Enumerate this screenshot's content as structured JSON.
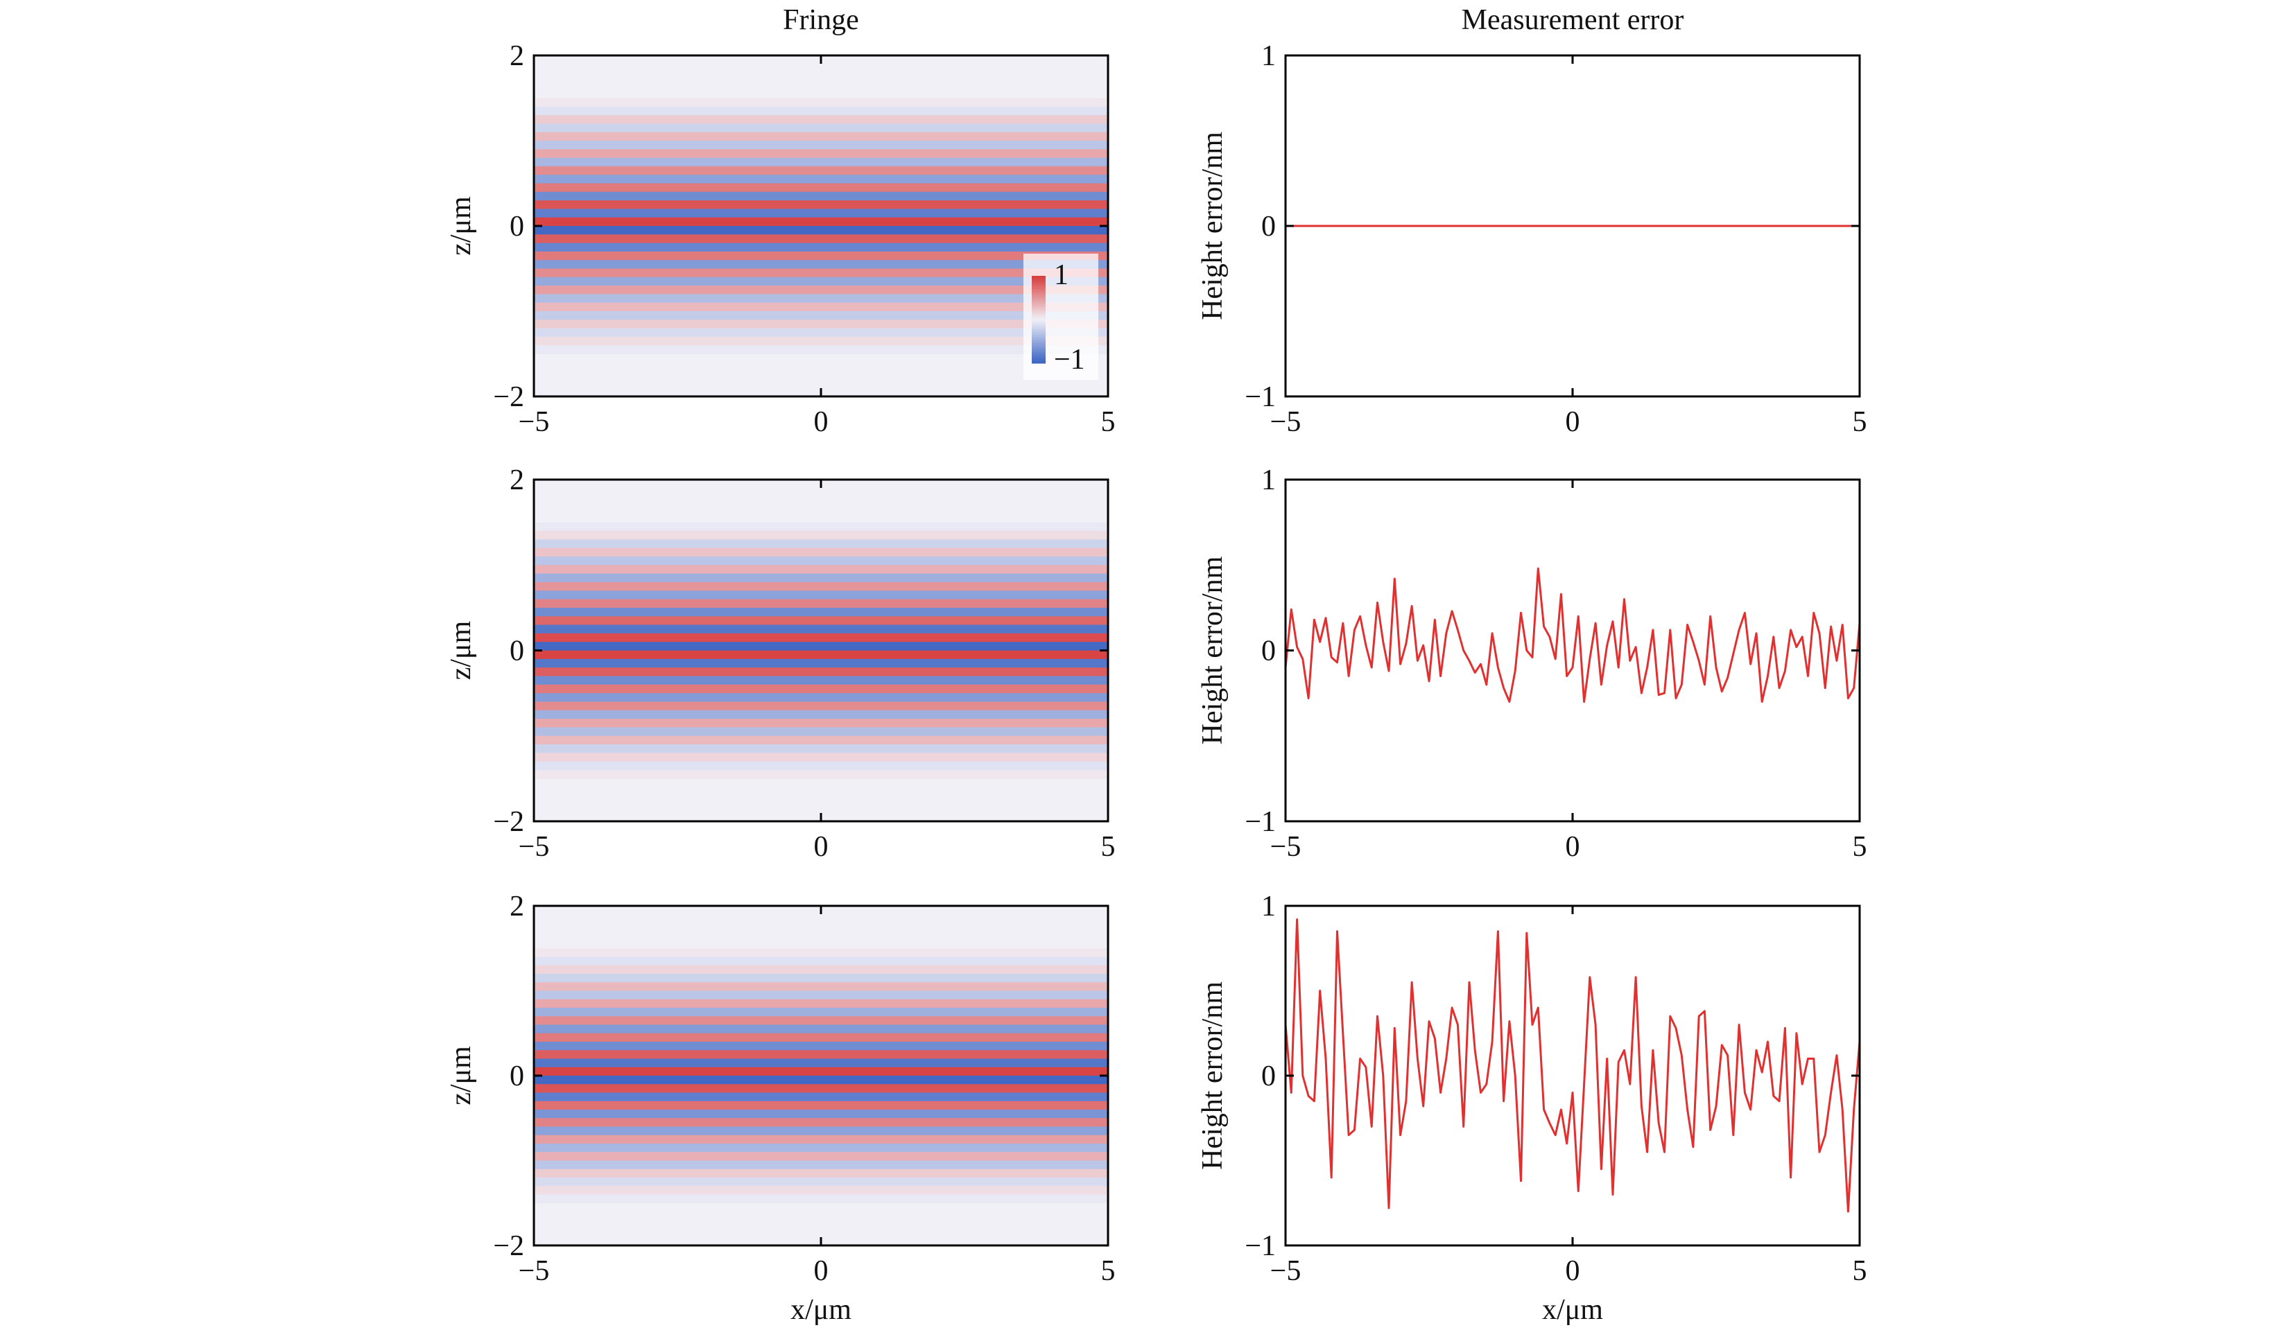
{
  "figure": {
    "column_titles": {
      "left": "Fringe",
      "right": "Measurement error"
    }
  },
  "colors": {
    "positive": "#d73a3a",
    "neutral": "#f1f0f7",
    "negative": "#3a62c2",
    "error_line": "#e03030"
  },
  "chart_data": [
    {
      "type": "heatmap",
      "row": 1,
      "title": "Fringe",
      "xlabel": "",
      "ylabel": "z/μm",
      "xlim": [
        -5,
        5
      ],
      "ylim": [
        -2,
        2
      ],
      "xticks": [
        -5,
        0,
        5
      ],
      "yticks": [
        -2,
        0,
        2
      ],
      "z_centers": [
        1.45,
        1.35,
        1.25,
        1.15,
        1.05,
        0.95,
        0.85,
        0.75,
        0.65,
        0.55,
        0.45,
        0.35,
        0.25,
        0.15,
        0.05,
        -0.05,
        -0.15,
        -0.25,
        -0.35,
        -0.45,
        -0.55,
        -0.65,
        -0.75,
        -0.85,
        -0.95,
        -1.05,
        -1.15,
        -1.25,
        -1.35,
        -1.45
      ],
      "intensity": [
        0.05,
        -0.1,
        0.2,
        -0.2,
        0.3,
        -0.3,
        0.4,
        -0.4,
        0.55,
        -0.55,
        0.65,
        -0.7,
        0.85,
        -0.8,
        0.95,
        -0.95,
        0.8,
        -0.75,
        0.65,
        -0.6,
        0.55,
        -0.5,
        0.45,
        -0.35,
        0.3,
        -0.25,
        0.2,
        -0.15,
        0.1,
        -0.05
      ],
      "colorbar": {
        "max_label": "1",
        "min_label": "−1",
        "range": [
          -1,
          1
        ]
      }
    },
    {
      "type": "heatmap",
      "row": 2,
      "xlabel": "",
      "ylabel": "z/μm",
      "xlim": [
        -5,
        5
      ],
      "ylim": [
        -2,
        2
      ],
      "xticks": [
        -5,
        0,
        5
      ],
      "yticks": [
        -2,
        0,
        2
      ],
      "z_centers": [
        1.45,
        1.35,
        1.25,
        1.15,
        1.05,
        0.95,
        0.85,
        0.75,
        0.65,
        0.55,
        0.45,
        0.35,
        0.25,
        0.15,
        0.05,
        -0.05,
        -0.15,
        -0.25,
        -0.35,
        -0.45,
        -0.55,
        -0.65,
        -0.75,
        -0.85,
        -0.95,
        -1.05,
        -1.15,
        -1.25,
        -1.35,
        -1.45
      ],
      "intensity": [
        -0.05,
        0.1,
        -0.2,
        0.25,
        -0.3,
        0.35,
        -0.45,
        0.5,
        -0.55,
        0.6,
        -0.7,
        0.75,
        -0.85,
        0.9,
        -0.95,
        0.95,
        -0.85,
        0.8,
        -0.7,
        0.65,
        -0.6,
        0.55,
        -0.45,
        0.4,
        -0.35,
        0.3,
        -0.2,
        0.15,
        -0.1,
        0.05
      ]
    },
    {
      "type": "heatmap",
      "row": 3,
      "xlabel": "x/μm",
      "ylabel": "z/μm",
      "xlim": [
        -5,
        5
      ],
      "ylim": [
        -2,
        2
      ],
      "xticks": [
        -5,
        0,
        5
      ],
      "yticks": [
        -2,
        0,
        2
      ],
      "z_centers": [
        1.45,
        1.35,
        1.25,
        1.15,
        1.05,
        0.95,
        0.85,
        0.75,
        0.65,
        0.55,
        0.45,
        0.35,
        0.25,
        0.15,
        0.05,
        -0.05,
        -0.15,
        -0.25,
        -0.35,
        -0.45,
        -0.55,
        -0.65,
        -0.75,
        -0.85,
        -0.95,
        -1.05,
        -1.15,
        -1.25,
        -1.35,
        -1.45
      ],
      "intensity": [
        0.05,
        -0.1,
        0.15,
        -0.2,
        0.3,
        -0.3,
        0.4,
        -0.45,
        0.55,
        -0.6,
        0.65,
        -0.7,
        0.8,
        -0.85,
        0.95,
        -0.95,
        0.85,
        -0.8,
        0.7,
        -0.65,
        0.6,
        -0.55,
        0.45,
        -0.4,
        0.35,
        -0.3,
        0.2,
        -0.15,
        0.1,
        -0.05
      ]
    },
    {
      "type": "line",
      "row": 1,
      "title": "Measurement error",
      "xlabel": "",
      "ylabel": "Height error/nm",
      "xlim": [
        -5,
        5
      ],
      "ylim": [
        -1,
        1
      ],
      "xticks": [
        -5,
        0,
        5
      ],
      "yticks": [
        -1,
        0,
        1
      ],
      "x": [
        -5,
        5
      ],
      "y": [
        0,
        0
      ]
    },
    {
      "type": "line",
      "row": 2,
      "xlabel": "",
      "ylabel": "Height error/nm",
      "xlim": [
        -5,
        5
      ],
      "ylim": [
        -1,
        1
      ],
      "xticks": [
        -5,
        0,
        5
      ],
      "yticks": [
        -1,
        0,
        1
      ],
      "x": [
        -5.0,
        -4.9,
        -4.8,
        -4.7,
        -4.6,
        -4.5,
        -4.4,
        -4.3,
        -4.2,
        -4.1,
        -4.0,
        -3.9,
        -3.8,
        -3.7,
        -3.6,
        -3.5,
        -3.4,
        -3.3,
        -3.2,
        -3.1,
        -3.0,
        -2.9,
        -2.8,
        -2.7,
        -2.6,
        -2.5,
        -2.4,
        -2.3,
        -2.2,
        -2.1,
        -2.0,
        -1.9,
        -1.8,
        -1.7,
        -1.6,
        -1.5,
        -1.4,
        -1.3,
        -1.2,
        -1.1,
        -1.0,
        -0.9,
        -0.8,
        -0.7,
        -0.6,
        -0.5,
        -0.4,
        -0.3,
        -0.2,
        -0.1,
        0.0,
        0.1,
        0.2,
        0.3,
        0.4,
        0.5,
        0.6,
        0.7,
        0.8,
        0.9,
        1.0,
        1.1,
        1.2,
        1.3,
        1.4,
        1.5,
        1.6,
        1.7,
        1.8,
        1.9,
        2.0,
        2.1,
        2.2,
        2.3,
        2.4,
        2.5,
        2.6,
        2.7,
        2.8,
        2.9,
        3.0,
        3.1,
        3.2,
        3.3,
        3.4,
        3.5,
        3.6,
        3.7,
        3.8,
        3.9,
        4.0,
        4.1,
        4.2,
        4.3,
        4.4,
        4.5,
        4.6,
        4.7,
        4.8,
        4.9,
        5.0
      ],
      "y": [
        -0.1,
        0.24,
        0.02,
        -0.05,
        -0.28,
        0.18,
        0.05,
        0.19,
        -0.04,
        -0.07,
        0.16,
        -0.15,
        0.12,
        0.2,
        0.03,
        -0.1,
        0.28,
        0.05,
        -0.12,
        0.42,
        -0.08,
        0.04,
        0.26,
        -0.06,
        0.03,
        -0.18,
        0.18,
        -0.15,
        0.1,
        0.23,
        0.12,
        0.0,
        -0.06,
        -0.13,
        -0.08,
        -0.2,
        0.1,
        -0.1,
        -0.22,
        -0.3,
        -0.12,
        0.22,
        0.0,
        -0.04,
        0.48,
        0.14,
        0.08,
        -0.05,
        0.33,
        -0.15,
        -0.1,
        0.2,
        -0.3,
        -0.05,
        0.16,
        -0.2,
        0.03,
        0.17,
        -0.1,
        0.3,
        -0.06,
        0.02,
        -0.25,
        -0.1,
        0.12,
        -0.26,
        -0.25,
        0.12,
        -0.28,
        -0.2,
        0.15,
        0.05,
        -0.06,
        -0.2,
        0.2,
        -0.1,
        -0.24,
        -0.16,
        -0.02,
        0.12,
        0.22,
        -0.08,
        0.1,
        -0.3,
        -0.15,
        0.08,
        -0.22,
        -0.12,
        0.12,
        0.02,
        0.08,
        -0.15,
        0.22,
        0.1,
        -0.22,
        0.14,
        -0.06,
        0.15,
        -0.28,
        -0.22,
        0.16
      ]
    },
    {
      "type": "line",
      "row": 3,
      "xlabel": "x/μm",
      "ylabel": "Height error/nm",
      "xlim": [
        -5,
        5
      ],
      "ylim": [
        -1,
        1
      ],
      "xticks": [
        -5,
        0,
        5
      ],
      "yticks": [
        -1,
        0,
        1
      ],
      "x": [
        -5.0,
        -4.9,
        -4.8,
        -4.7,
        -4.6,
        -4.5,
        -4.4,
        -4.3,
        -4.2,
        -4.1,
        -4.0,
        -3.9,
        -3.8,
        -3.7,
        -3.6,
        -3.5,
        -3.4,
        -3.3,
        -3.2,
        -3.1,
        -3.0,
        -2.9,
        -2.8,
        -2.7,
        -2.6,
        -2.5,
        -2.4,
        -2.3,
        -2.2,
        -2.1,
        -2.0,
        -1.9,
        -1.8,
        -1.7,
        -1.6,
        -1.5,
        -1.4,
        -1.3,
        -1.2,
        -1.1,
        -1.0,
        -0.9,
        -0.8,
        -0.7,
        -0.6,
        -0.5,
        -0.4,
        -0.3,
        -0.2,
        -0.1,
        0.0,
        0.1,
        0.2,
        0.3,
        0.4,
        0.5,
        0.6,
        0.7,
        0.8,
        0.9,
        1.0,
        1.1,
        1.2,
        1.3,
        1.4,
        1.5,
        1.6,
        1.7,
        1.8,
        1.9,
        2.0,
        2.1,
        2.2,
        2.3,
        2.4,
        2.5,
        2.6,
        2.7,
        2.8,
        2.9,
        3.0,
        3.1,
        3.2,
        3.3,
        3.4,
        3.5,
        3.6,
        3.7,
        3.8,
        3.9,
        4.0,
        4.1,
        4.2,
        4.3,
        4.4,
        4.5,
        4.6,
        4.7,
        4.8,
        4.9,
        5.0
      ],
      "y": [
        0.3,
        -0.1,
        0.92,
        0.0,
        -0.12,
        -0.15,
        0.5,
        0.1,
        -0.6,
        0.85,
        0.25,
        -0.35,
        -0.32,
        0.1,
        0.05,
        -0.3,
        0.35,
        0.0,
        -0.78,
        0.28,
        -0.35,
        -0.15,
        0.55,
        0.1,
        -0.18,
        0.32,
        0.22,
        -0.1,
        0.1,
        0.4,
        0.3,
        -0.3,
        0.55,
        0.15,
        -0.1,
        -0.05,
        0.2,
        0.85,
        -0.15,
        0.32,
        0.0,
        -0.62,
        0.84,
        0.3,
        0.4,
        -0.2,
        -0.28,
        -0.35,
        -0.2,
        -0.4,
        -0.1,
        -0.68,
        -0.05,
        0.58,
        0.3,
        -0.55,
        0.1,
        -0.7,
        0.08,
        0.15,
        -0.05,
        0.58,
        -0.18,
        -0.45,
        0.15,
        -0.28,
        -0.45,
        0.35,
        0.28,
        0.12,
        -0.2,
        -0.42,
        0.35,
        0.38,
        -0.32,
        -0.18,
        0.18,
        0.12,
        -0.35,
        0.3,
        -0.1,
        -0.2,
        0.15,
        0.02,
        0.2,
        -0.12,
        -0.15,
        0.28,
        -0.6,
        0.25,
        -0.05,
        0.1,
        0.1,
        -0.45,
        -0.35,
        -0.1,
        0.12,
        -0.2,
        -0.8,
        -0.2,
        0.2
      ]
    }
  ]
}
